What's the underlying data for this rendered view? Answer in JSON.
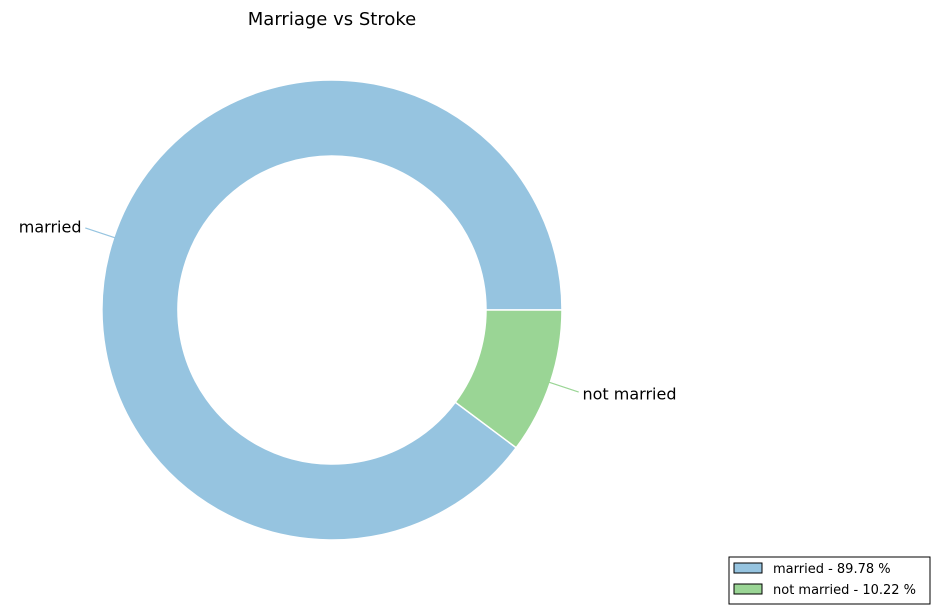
{
  "chart_data": {
    "type": "pie",
    "style": "donut",
    "title": "Marriage vs Stroke",
    "slices": [
      {
        "label": "married",
        "value": 89.78,
        "color": "#96c4e0",
        "legend": "married - 89.78 %"
      },
      {
        "label": "not married",
        "value": 10.22,
        "color": "#9ad595",
        "legend": "not married - 10.22 %"
      }
    ],
    "legend_position": "bottom-right"
  }
}
